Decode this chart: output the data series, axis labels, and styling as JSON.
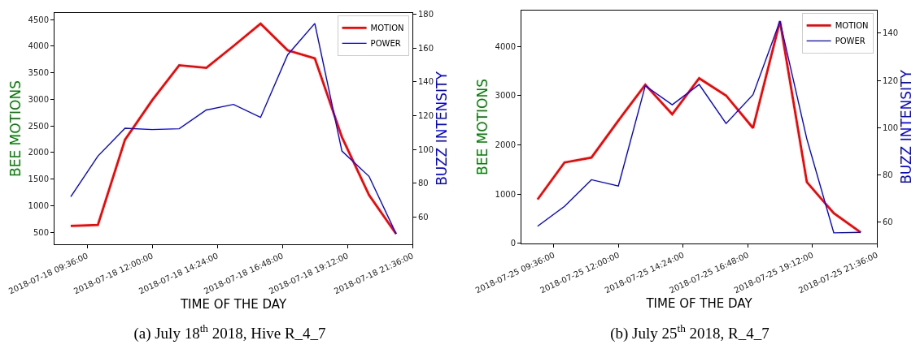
{
  "chart_data": [
    {
      "type": "line",
      "title": "(a) July 18$^{th}$ 2018, Hive R_4_7",
      "xlabel": "TIME OF THE DAY",
      "ylabel": "BEE MOTIONS",
      "y2label": "BUZZ INTENSITY",
      "x": [
        "2018-07-18T09:00",
        "2018-07-18T10:00",
        "2018-07-18T11:00",
        "2018-07-18T12:00",
        "2018-07-18T13:00",
        "2018-07-18T14:00",
        "2018-07-18T15:00",
        "2018-07-18T16:00",
        "2018-07-18T17:00",
        "2018-07-18T18:00",
        "2018-07-18T19:00",
        "2018-07-18T20:00",
        "2018-07-18T21:00"
      ],
      "series": [
        {
          "name": "MOTION",
          "color": "#ff0000",
          "values": [
            620,
            640,
            2240,
            2980,
            3640,
            3590,
            4000,
            4420,
            3920,
            3770,
            2290,
            1200,
            470
          ]
        },
        {
          "name": "POWER",
          "color": "#0000ff",
          "axis": "y2",
          "values": [
            72,
            96,
            112.5,
            111.7,
            112.2,
            123.3,
            126.6,
            118.9,
            156,
            174.5,
            99,
            84,
            50
          ]
        }
      ],
      "xlim": [
        "2018-07-18T08:24",
        "2018-07-18T21:36"
      ],
      "xticks": [
        {
          "value": "2018-07-18T09:36",
          "label": "2018-07-18 09:36:00"
        },
        {
          "value": "2018-07-18T12:00",
          "label": "2018-07-18 12:00:00"
        },
        {
          "value": "2018-07-18T14:24",
          "label": "2018-07-18 14:24:00"
        },
        {
          "value": "2018-07-18T16:48",
          "label": "2018-07-18 16:48:00"
        },
        {
          "value": "2018-07-18T19:12",
          "label": "2018-07-18 19:12:00"
        },
        {
          "value": "2018-07-18T21:36",
          "label": "2018-07-18 21:36:00"
        }
      ],
      "ylim": [
        275,
        4622
      ],
      "yticks": [
        500,
        1000,
        1500,
        2000,
        2500,
        3000,
        3500,
        4000,
        4500
      ],
      "y2lim": [
        43.8,
        180.7
      ],
      "y2ticks": [
        60,
        80,
        100,
        120,
        140,
        160,
        180
      ],
      "legend": "top right"
    },
    {
      "type": "line",
      "title": "(b) July 25$^{th}$ 2018, R_4_7",
      "xlabel": "TIME OF THE DAY",
      "ylabel": "BEE MOTIONS",
      "y2label": "BUZZ INTENSITY",
      "x": [
        "2018-07-25T09:00",
        "2018-07-25T10:00",
        "2018-07-25T11:00",
        "2018-07-25T12:00",
        "2018-07-25T13:00",
        "2018-07-25T14:00",
        "2018-07-25T15:00",
        "2018-07-25T16:00",
        "2018-07-25T17:00",
        "2018-07-25T18:00",
        "2018-07-25T19:00",
        "2018-07-25T20:00",
        "2018-07-25T21:00"
      ],
      "series": [
        {
          "name": "MOTION",
          "color": "#ff0000",
          "values": [
            890,
            1640,
            1740,
            2490,
            3220,
            2620,
            3350,
            3000,
            2340,
            4510,
            1240,
            610,
            220
          ]
        },
        {
          "name": "POWER",
          "color": "#0000ff",
          "axis": "y2",
          "values": [
            58.3,
            66.7,
            78,
            75.3,
            117.8,
            109.7,
            118.3,
            101.8,
            114,
            145.1,
            95.2,
            55.5,
            55.7
          ]
        }
      ],
      "xlim": [
        "2018-07-25T08:24",
        "2018-07-25T21:36"
      ],
      "xticks": [
        {
          "value": "2018-07-25T09:36",
          "label": "2018-07-25 09:36:00"
        },
        {
          "value": "2018-07-25T12:00",
          "label": "2018-07-25 12:00:00"
        },
        {
          "value": "2018-07-25T14:24",
          "label": "2018-07-25 14:24:00"
        },
        {
          "value": "2018-07-25T16:48",
          "label": "2018-07-25 16:48:00"
        },
        {
          "value": "2018-07-25T19:12",
          "label": "2018-07-25 19:12:00"
        },
        {
          "value": "2018-07-25T21:36",
          "label": "2018-07-25 21:36:00"
        }
      ],
      "ylim": [
        -5,
        4726
      ],
      "yticks": [
        0,
        1000,
        2000,
        3000,
        4000
      ],
      "y2lim": [
        51,
        149.6
      ],
      "y2ticks": [
        60,
        80,
        100,
        120,
        140
      ],
      "legend": "top right"
    }
  ]
}
